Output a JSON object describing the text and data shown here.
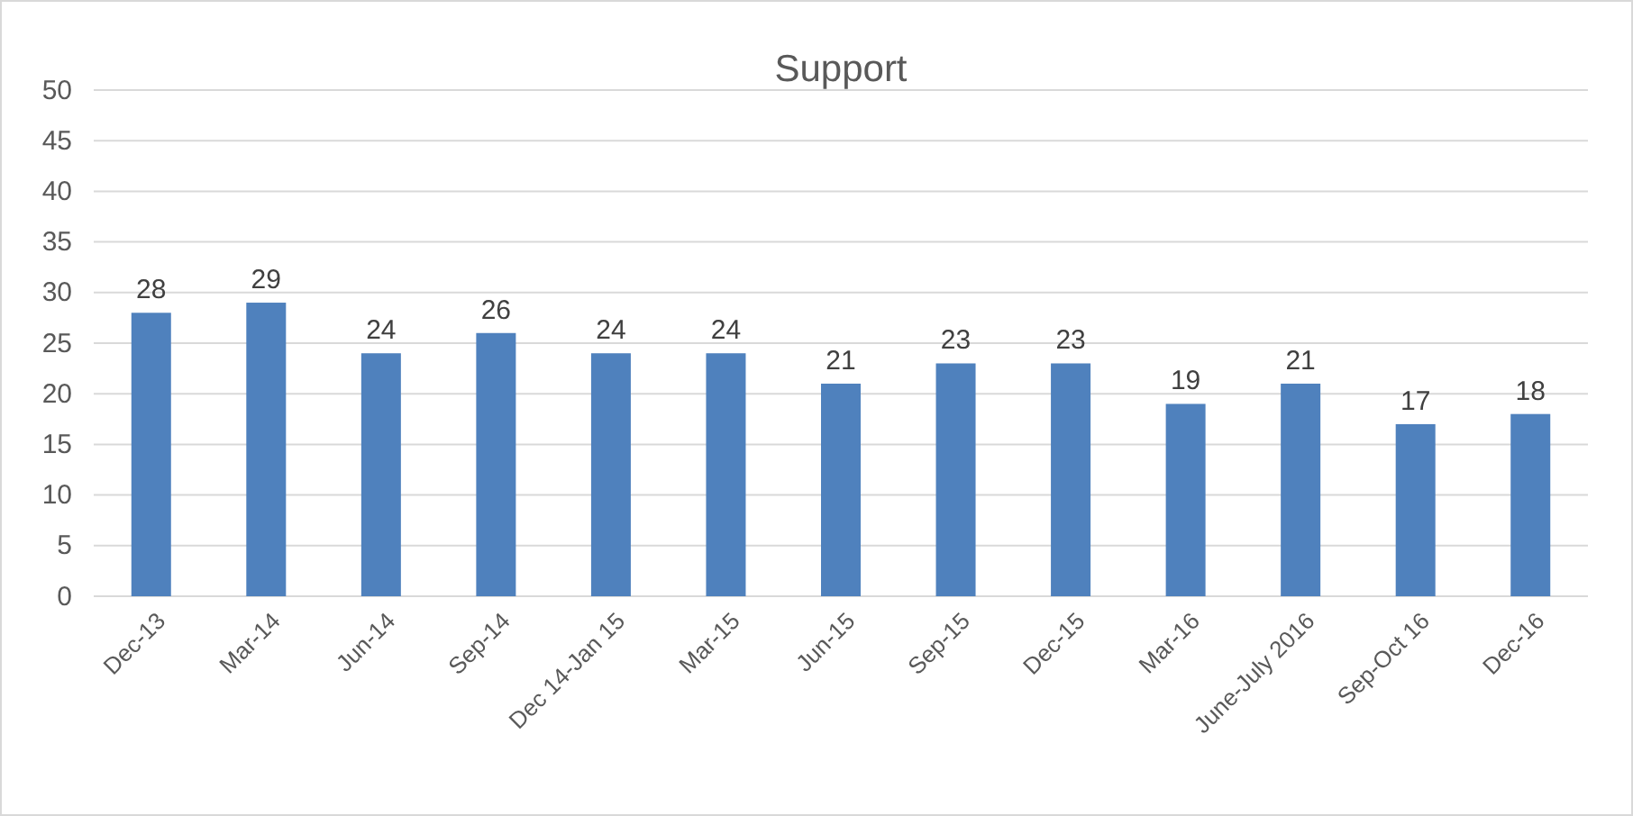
{
  "chart_data": {
    "type": "bar",
    "title": "Support",
    "categories": [
      "Dec-13",
      "Mar-14",
      "Jun-14",
      "Sep-14",
      "Dec 14-Jan 15",
      "Mar-15",
      "Jun-15",
      "Sep-15",
      "Dec-15",
      "Mar-16",
      "June-July 2016",
      "Sep-Oct 16",
      "Dec-16"
    ],
    "values": [
      28,
      29,
      24,
      26,
      24,
      24,
      21,
      23,
      23,
      19,
      21,
      17,
      18
    ],
    "color": "#4f81bd",
    "ylim": [
      0,
      50
    ],
    "yticks": [
      0,
      5,
      10,
      15,
      20,
      25,
      30,
      35,
      40,
      45,
      50
    ],
    "grid": "y",
    "data_labels": true
  }
}
